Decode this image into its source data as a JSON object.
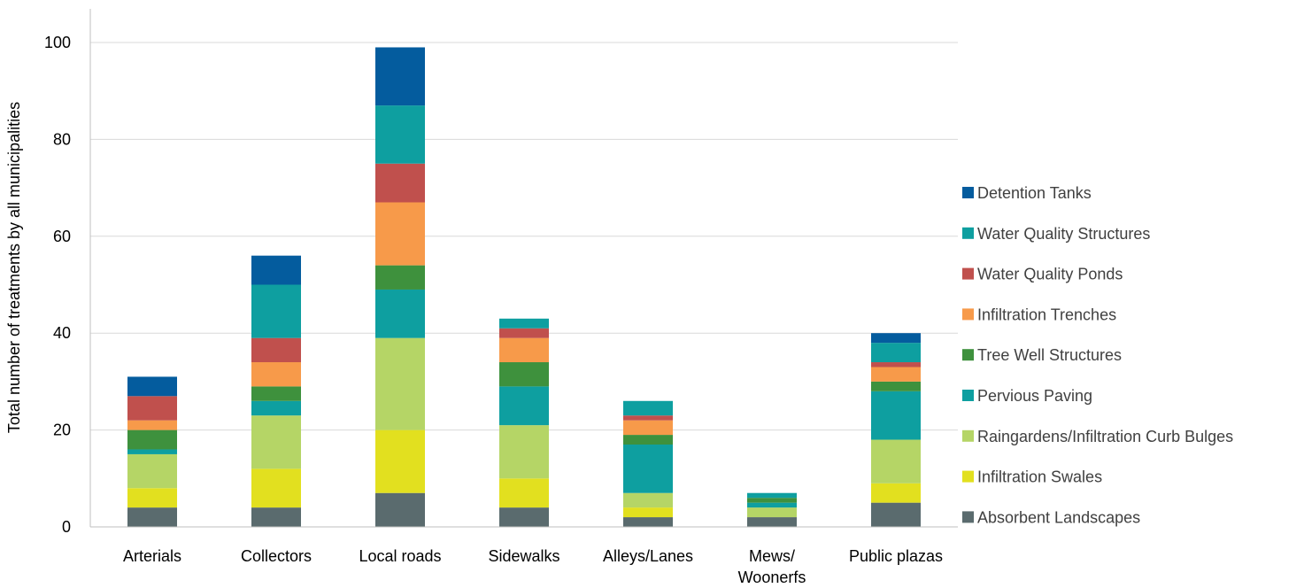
{
  "chart_data": {
    "type": "bar",
    "stacked": true,
    "ylabel": "Total number of treatments by all municipalities",
    "ylim": [
      0,
      100
    ],
    "yticks": [
      "0",
      "20",
      "40",
      "60",
      "80",
      "100"
    ],
    "grid": true,
    "legend_position": "right",
    "categories": [
      [
        "Arterials"
      ],
      [
        "Collectors"
      ],
      [
        "Local roads"
      ],
      [
        "Sidewalks"
      ],
      [
        "Alleys/Lanes"
      ],
      [
        "Mews/",
        "Woonerfs"
      ],
      [
        "Public plazas"
      ]
    ],
    "series": [
      {
        "name": "Absorbent Landscapes",
        "color": "#5a6b6e",
        "values": [
          4,
          4,
          7,
          4,
          2,
          2,
          5
        ]
      },
      {
        "name": "Infiltration Swales",
        "color": "#e2e01f",
        "values": [
          4,
          8,
          13,
          6,
          2,
          0,
          4
        ]
      },
      {
        "name": "Raingardens/Infiltration Curb Bulges",
        "color": "#b5d566",
        "values": [
          7,
          11,
          19,
          11,
          3,
          2,
          9
        ]
      },
      {
        "name": "Pervious Paving",
        "color": "#0e9fa0",
        "values": [
          1,
          3,
          10,
          8,
          10,
          1,
          10
        ]
      },
      {
        "name": "Tree Well Structures",
        "color": "#3e913d",
        "values": [
          4,
          3,
          5,
          5,
          2,
          1,
          2
        ]
      },
      {
        "name": "Infiltration Trenches",
        "color": "#f79a4a",
        "values": [
          2,
          5,
          13,
          5,
          3,
          0,
          3
        ]
      },
      {
        "name": "Water Quality Ponds",
        "color": "#c0504d",
        "values": [
          5,
          5,
          8,
          2,
          1,
          0,
          1
        ]
      },
      {
        "name": "Water Quality Structures",
        "color": "#0e9fa0",
        "values": [
          0,
          11,
          12,
          2,
          3,
          1,
          4
        ]
      },
      {
        "name": "Detention Tanks",
        "color": "#045c9e",
        "values": [
          4,
          6,
          12,
          0,
          0,
          0,
          2
        ]
      }
    ]
  }
}
